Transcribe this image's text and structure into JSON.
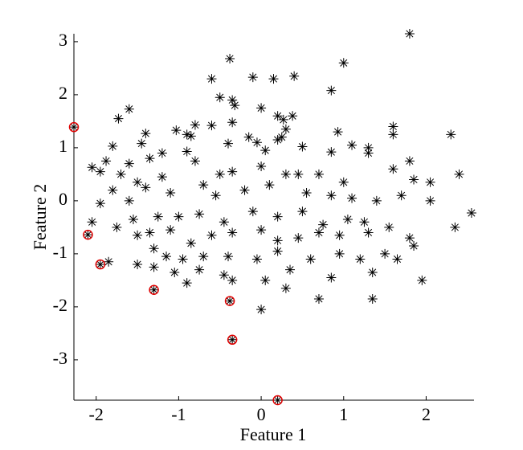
{
  "chart_data": {
    "type": "scatter",
    "xlabel": "Feature 1",
    "ylabel": "Feature 2",
    "xlim": [
      -2.27,
      2.58
    ],
    "ylim": [
      -3.76,
      3.15
    ],
    "xticks": [
      -2,
      -1,
      0,
      1,
      2
    ],
    "yticks": [
      -3,
      -2,
      -1,
      0,
      1,
      2,
      3
    ],
    "series": [
      {
        "color": "#000000",
        "marker": "*",
        "x": [
          1.8,
          -0.38,
          1.0,
          -0.6,
          -0.1,
          0.15,
          0.4,
          0.85,
          -0.5,
          -0.35,
          -0.32,
          0.0,
          -1.6,
          0.2,
          0.27,
          0.38,
          -1.73,
          -0.35,
          -0.8,
          -0.6,
          1.6,
          -1.4,
          -1.03,
          -0.9,
          -0.85,
          0.3,
          0.93,
          2.3,
          -0.15,
          0.2,
          0.25,
          -0.05,
          1.6,
          -1.8,
          -1.45,
          -0.4,
          0.05,
          0.5,
          0.85,
          1.1,
          1.3,
          1.3,
          -1.2,
          -0.9,
          -1.88,
          -1.6,
          -1.35,
          -0.8,
          1.8,
          -2.05,
          -1.95,
          -1.7,
          -1.5,
          -1.2,
          -0.5,
          -0.35,
          0.0,
          0.3,
          0.45,
          0.7,
          1.0,
          1.6,
          1.85,
          2.4,
          2.05,
          -1.8,
          -1.6,
          -1.95,
          -1.4,
          -1.1,
          -0.7,
          -0.55,
          -0.2,
          0.1,
          0.55,
          0.85,
          1.1,
          1.4,
          1.7,
          2.05,
          2.55,
          -2.05,
          -1.75,
          -1.55,
          -1.25,
          -1.0,
          -0.75,
          -0.45,
          -0.1,
          0.2,
          0.5,
          0.75,
          1.05,
          1.25,
          1.55,
          2.35,
          -1.5,
          -1.35,
          -1.1,
          -0.85,
          -0.6,
          -0.35,
          0.0,
          0.2,
          0.45,
          0.7,
          0.95,
          1.3,
          1.8,
          1.85,
          -1.85,
          -1.5,
          -1.3,
          -1.15,
          -0.95,
          -0.7,
          -0.4,
          -0.05,
          0.2,
          0.6,
          0.95,
          1.2,
          1.5,
          1.65,
          -1.3,
          -1.05,
          -0.75,
          -0.45,
          0.05,
          0.35,
          0.85,
          1.35,
          1.95,
          -0.9,
          -0.35,
          0.3,
          0.7,
          1.35,
          0.0
        ],
        "y": [
          3.15,
          2.68,
          2.6,
          2.3,
          2.33,
          2.3,
          2.35,
          2.08,
          1.95,
          1.9,
          1.8,
          1.75,
          1.73,
          1.6,
          1.53,
          1.6,
          1.55,
          1.48,
          1.43,
          1.42,
          1.4,
          1.27,
          1.33,
          1.25,
          1.22,
          1.35,
          1.3,
          1.25,
          1.2,
          1.15,
          1.2,
          1.1,
          1.25,
          1.03,
          1.08,
          1.08,
          0.95,
          1.02,
          0.92,
          1.05,
          1.0,
          0.9,
          0.9,
          0.93,
          0.75,
          0.7,
          0.8,
          0.75,
          0.75,
          0.63,
          0.55,
          0.5,
          0.35,
          0.45,
          0.5,
          0.55,
          0.65,
          0.5,
          0.5,
          0.5,
          0.35,
          0.6,
          0.4,
          0.5,
          0.35,
          0.2,
          0.0,
          -0.05,
          0.25,
          0.15,
          0.3,
          0.1,
          0.2,
          0.3,
          0.15,
          0.1,
          0.05,
          0.0,
          0.1,
          0.0,
          -0.23,
          -0.4,
          -0.5,
          -0.35,
          -0.3,
          -0.3,
          -0.25,
          -0.4,
          -0.2,
          -0.3,
          -0.2,
          -0.45,
          -0.35,
          -0.4,
          -0.5,
          -0.5,
          -0.65,
          -0.6,
          -0.55,
          -0.8,
          -0.65,
          -0.6,
          -0.55,
          -0.75,
          -0.7,
          -0.6,
          -0.65,
          -0.6,
          -0.7,
          -0.85,
          -1.15,
          -1.2,
          -0.9,
          -1.05,
          -1.1,
          -1.05,
          -1.05,
          -1.1,
          -0.95,
          -1.1,
          -1.0,
          -1.1,
          -1.0,
          -1.1,
          -1.25,
          -1.35,
          -1.3,
          -1.4,
          -1.5,
          -1.3,
          -1.45,
          -1.35,
          -1.5,
          -1.55,
          -1.5,
          -1.65,
          -1.85,
          -1.85,
          -2.05
        ]
      },
      {
        "color": "#000000",
        "marker": "*",
        "ring": "#e00000",
        "x": [
          -2.27,
          -2.1,
          -1.95,
          -1.3,
          -0.38,
          -0.35,
          0.2
        ],
        "y": [
          1.39,
          -0.64,
          -1.2,
          -1.68,
          -1.89,
          -2.62,
          -3.76
        ]
      }
    ]
  }
}
